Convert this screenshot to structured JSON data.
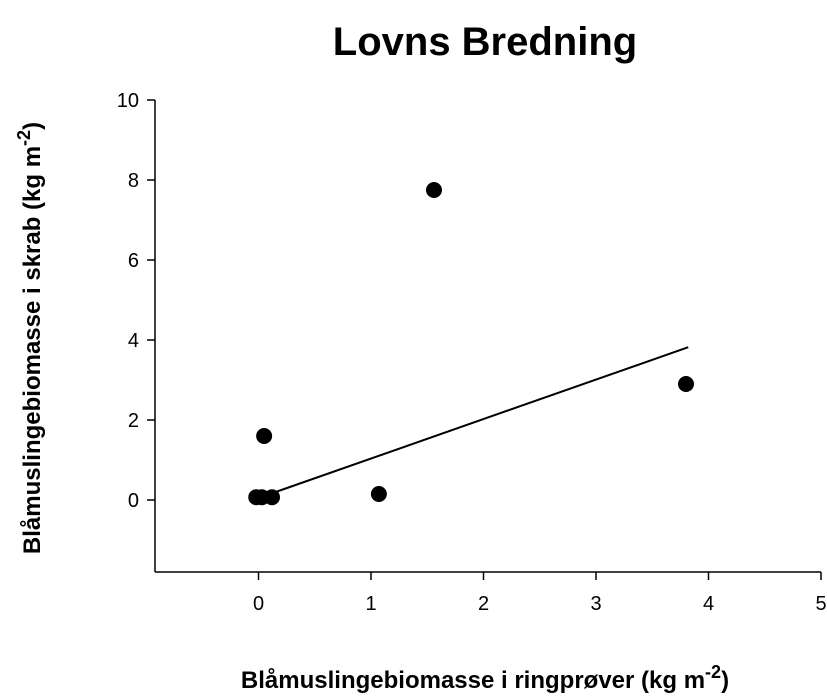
{
  "chart_data": {
    "type": "scatter",
    "title": "Lovns Bredning",
    "xlabel": {
      "text": "Blåmuslingebiomasse i ringprøver (kg m",
      "superscript": "-2",
      "suffix": ")"
    },
    "ylabel": {
      "text": "Blåmuslingebiomasse i skrab (kg m",
      "superscript": "-2",
      "suffix": ")"
    },
    "xlim": [
      -0.92,
      5
    ],
    "ylim": [
      -1.8,
      10
    ],
    "xticks": [
      0,
      1,
      2,
      3,
      4,
      5
    ],
    "yticks": [
      0,
      2,
      4,
      6,
      8,
      10
    ],
    "color": "#000000",
    "x": [
      -0.02,
      0.03,
      0.12,
      0.05,
      1.07,
      1.56,
      3.8
    ],
    "values": [
      0.07,
      0.07,
      0.07,
      1.6,
      0.15,
      7.75,
      2.9
    ],
    "trendline": {
      "x": [
        0,
        3.82
      ],
      "y": [
        0.05,
        3.82
      ]
    }
  }
}
